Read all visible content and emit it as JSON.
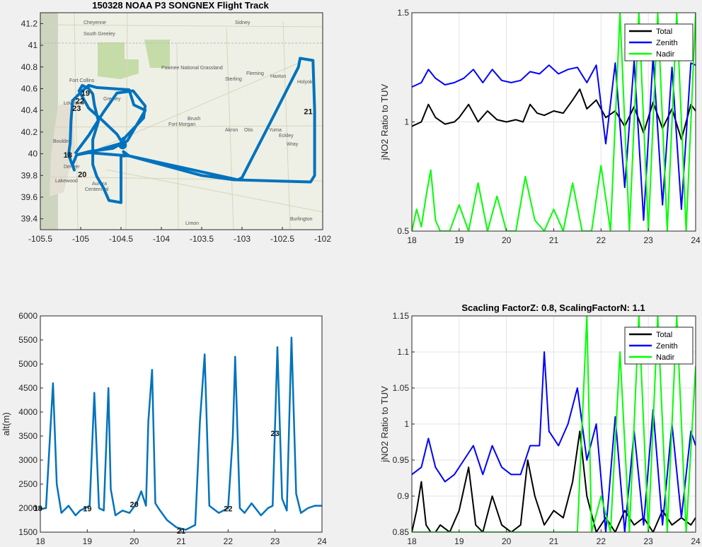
{
  "colors": {
    "track": "#0072bd",
    "total": "#000000",
    "zenith": "#0000ff",
    "nadir": "#00ff00"
  },
  "chart_data": [
    {
      "type": "line",
      "title": "150328 NOAA P3 SONGNEX Flight Track",
      "xlim": [
        -105.5,
        -102
      ],
      "ylim": [
        39.3,
        41.3
      ],
      "xticks": [
        "-105.5",
        "-105",
        "-104.5",
        "-104",
        "-103.5",
        "-103",
        "-102.5",
        "-102"
      ],
      "yticks": [
        "39.4",
        "39.6",
        "39.8",
        "40",
        "40.2",
        "40.4",
        "40.6",
        "40.8",
        "41",
        "41.2"
      ],
      "basemap": "road map of northeastern Colorado",
      "map_labels": [
        "Cheyenne",
        "South Greeley",
        "Sidney",
        "Fort Collins",
        "Greeley",
        "Loveland",
        "Pawnee National Grassland",
        "Sterling",
        "Fleming",
        "Haxtun",
        "Holyoke",
        "Boulder",
        "Denver",
        "Lakewood",
        "Aurora",
        "Centennial",
        "Brush",
        "Fort Morgan",
        "Akron",
        "Otis",
        "Yuma",
        "Eckley",
        "Wray",
        "Limon",
        "Burlington"
      ],
      "hour_labels": [
        {
          "text": "19",
          "x": -104.94,
          "y": 40.56
        },
        {
          "text": "22",
          "x": -105.01,
          "y": 40.49
        },
        {
          "text": "23",
          "x": -105.05,
          "y": 40.42
        },
        {
          "text": "21",
          "x": -102.18,
          "y": 40.39
        },
        {
          "text": "18",
          "x": -105.16,
          "y": 39.99
        },
        {
          "text": "20",
          "x": -104.98,
          "y": 39.81
        }
      ],
      "track": [
        [
          -105.07,
          40.0
        ],
        [
          -104.9,
          40.17
        ],
        [
          -104.72,
          40.38
        ],
        [
          -104.55,
          40.56
        ],
        [
          -104.35,
          40.58
        ],
        [
          -104.2,
          40.44
        ],
        [
          -104.22,
          40.33
        ],
        [
          -104.45,
          40.15
        ],
        [
          -104.5,
          40.08
        ],
        [
          -104.42,
          40.12
        ],
        [
          -104.2,
          40.4
        ],
        [
          -104.34,
          40.45
        ],
        [
          -104.4,
          40.59
        ],
        [
          -104.8,
          40.61
        ],
        [
          -104.9,
          40.63
        ],
        [
          -104.98,
          40.58
        ],
        [
          -105.1,
          40.49
        ],
        [
          -105.12,
          40.3
        ],
        [
          -105.13,
          40.1
        ],
        [
          -105.15,
          39.99
        ],
        [
          -105.08,
          39.85
        ],
        [
          -105.1,
          39.9
        ],
        [
          -105.05,
          39.99
        ],
        [
          -104.9,
          40.02
        ],
        [
          -104.6,
          40.05
        ],
        [
          -104.48,
          40.1
        ],
        [
          -104.85,
          40.02
        ],
        [
          -105.05,
          39.99
        ],
        [
          -104.9,
          40.01
        ],
        [
          -104.4,
          39.98
        ],
        [
          -103.05,
          39.76
        ],
        [
          -103.0,
          39.78
        ],
        [
          -102.6,
          40.36
        ],
        [
          -102.3,
          40.8
        ],
        [
          -102.28,
          40.88
        ],
        [
          -102.12,
          40.86
        ],
        [
          -102.1,
          40.4
        ],
        [
          -102.1,
          39.8
        ],
        [
          -102.15,
          39.74
        ],
        [
          -103.1,
          39.76
        ],
        [
          -103.5,
          39.8
        ],
        [
          -104.4,
          39.98
        ],
        [
          -104.47,
          40.02
        ],
        [
          -104.45,
          39.98
        ],
        [
          -104.5,
          39.98
        ],
        [
          -104.5,
          39.55
        ],
        [
          -104.65,
          39.57
        ],
        [
          -104.72,
          39.69
        ],
        [
          -104.8,
          39.79
        ],
        [
          -104.85,
          39.9
        ],
        [
          -104.85,
          40.13
        ],
        [
          -104.78,
          40.3
        ],
        [
          -104.83,
          40.45
        ],
        [
          -104.85,
          40.55
        ],
        [
          -104.9,
          40.6
        ],
        [
          -104.98,
          40.63
        ],
        [
          -105.02,
          40.58
        ],
        [
          -104.9,
          40.42
        ],
        [
          -104.72,
          40.3
        ],
        [
          -104.55,
          40.18
        ],
        [
          -104.5,
          40.12
        ],
        [
          -104.46,
          40.15
        ]
      ]
    },
    {
      "type": "line",
      "title": "",
      "xlabel": "",
      "ylabel": "jNO2 Ratio to TUV",
      "xlim": [
        18,
        24
      ],
      "ylim": [
        0.5,
        1.5
      ],
      "xticks": [
        "18",
        "19",
        "20",
        "21",
        "22",
        "23",
        "24"
      ],
      "yticks": [
        "0.5",
        "1",
        "1.5"
      ],
      "grid": true,
      "legend": "top-right",
      "series": [
        {
          "name": "Total",
          "x": [
            18.0,
            18.2,
            18.35,
            18.5,
            18.7,
            18.9,
            19.0,
            19.2,
            19.4,
            19.6,
            19.8,
            20.0,
            20.2,
            20.35,
            20.5,
            20.65,
            20.8,
            21.0,
            21.2,
            21.4,
            21.55,
            21.7,
            21.9,
            22.1,
            22.3,
            22.5,
            22.7,
            22.9,
            23.1,
            23.3,
            23.5,
            23.7,
            23.9,
            24.0
          ],
          "y": [
            0.98,
            1.0,
            1.08,
            1.02,
            0.99,
            1.0,
            1.02,
            1.08,
            1.0,
            1.05,
            1.01,
            1.0,
            1.01,
            1.0,
            1.08,
            1.04,
            1.03,
            1.05,
            1.04,
            1.1,
            1.15,
            1.06,
            1.1,
            1.02,
            1.05,
            0.98,
            1.07,
            0.95,
            1.09,
            0.97,
            1.06,
            0.92,
            1.08,
            1.05
          ]
        },
        {
          "name": "Zenith",
          "x": [
            18.0,
            18.2,
            18.35,
            18.5,
            18.7,
            18.9,
            19.1,
            19.3,
            19.5,
            19.7,
            19.9,
            20.1,
            20.3,
            20.5,
            20.7,
            20.9,
            21.1,
            21.3,
            21.5,
            21.7,
            21.9,
            22.1,
            22.3,
            22.5,
            22.7,
            22.9,
            23.1,
            23.3,
            23.5,
            23.7,
            23.9,
            24.0
          ],
          "y": [
            1.16,
            1.18,
            1.24,
            1.2,
            1.17,
            1.18,
            1.2,
            1.24,
            1.18,
            1.24,
            1.19,
            1.18,
            1.19,
            1.23,
            1.22,
            1.26,
            1.22,
            1.24,
            1.25,
            1.18,
            1.26,
            0.9,
            1.27,
            0.7,
            1.28,
            0.55,
            1.3,
            0.62,
            1.25,
            0.6,
            1.27,
            1.26
          ]
        },
        {
          "name": "Nadir",
          "x": [
            18.0,
            18.1,
            18.2,
            18.3,
            18.4,
            18.5,
            18.6,
            18.8,
            19.0,
            19.2,
            19.4,
            19.6,
            19.8,
            20.0,
            20.2,
            20.4,
            20.6,
            20.8,
            21.0,
            21.2,
            21.4,
            21.6,
            21.8,
            22.0,
            22.2,
            22.4,
            22.6,
            22.8,
            23.0,
            23.2,
            23.4,
            23.6,
            23.8,
            24.0
          ],
          "y": [
            0.5,
            0.6,
            0.52,
            0.66,
            0.78,
            0.55,
            0.5,
            0.5,
            0.62,
            0.5,
            0.72,
            0.5,
            0.66,
            0.5,
            0.5,
            0.75,
            0.55,
            0.5,
            0.6,
            0.5,
            0.72,
            0.5,
            0.5,
            0.8,
            0.5,
            1.5,
            0.5,
            1.5,
            0.5,
            1.5,
            0.5,
            1.5,
            0.5,
            1.5
          ]
        }
      ]
    },
    {
      "type": "line",
      "title": "",
      "xlabel": "",
      "ylabel": "alt(m)",
      "xlim": [
        18,
        24
      ],
      "ylim": [
        1500,
        6000
      ],
      "xticks": [
        "18",
        "19",
        "20",
        "21",
        "22",
        "23",
        "24"
      ],
      "yticks": [
        "1500",
        "2000",
        "2500",
        "3000",
        "3500",
        "4000",
        "4500",
        "5000",
        "5500",
        "6000"
      ],
      "series": [
        {
          "name": "",
          "x": [
            18.0,
            18.12,
            18.2,
            18.27,
            18.35,
            18.45,
            18.6,
            18.75,
            18.85,
            18.95,
            19.05,
            19.15,
            19.25,
            19.35,
            19.45,
            19.5,
            19.6,
            19.75,
            19.9,
            20.05,
            20.15,
            20.25,
            20.3,
            20.38,
            20.45,
            20.55,
            20.7,
            20.9,
            21.1,
            21.3,
            21.4,
            21.5,
            21.6,
            21.8,
            22.0,
            22.1,
            22.15,
            22.25,
            22.35,
            22.5,
            22.7,
            22.85,
            22.95,
            23.05,
            23.15,
            23.25,
            23.35,
            23.45,
            23.55,
            23.7,
            23.85,
            24.0
          ],
          "y": [
            1980,
            2000,
            3400,
            4600,
            2500,
            1900,
            2050,
            1850,
            1950,
            2000,
            2050,
            4400,
            2000,
            1950,
            4500,
            2400,
            1850,
            1950,
            1900,
            2100,
            2350,
            2050,
            3800,
            4880,
            2100,
            1950,
            1750,
            1600,
            1550,
            1650,
            3800,
            5200,
            2050,
            1900,
            2000,
            3500,
            5150,
            2000,
            1900,
            2100,
            1850,
            2000,
            2050,
            5350,
            2200,
            1950,
            5550,
            2300,
            1900,
            2000,
            2050,
            2050
          ]
        }
      ],
      "hour_labels": [
        {
          "text": "18",
          "x": 17.95,
          "y": 2000
        },
        {
          "text": "19",
          "x": 19.0,
          "y": 1990
        },
        {
          "text": "20",
          "x": 20.0,
          "y": 2080
        },
        {
          "text": "21",
          "x": 21.0,
          "y": 1530
        },
        {
          "text": "22",
          "x": 22.0,
          "y": 1990
        },
        {
          "text": "23",
          "x": 23.0,
          "y": 3560
        }
      ]
    },
    {
      "type": "line",
      "title": "Scacling FactorZ: 0.8, ScalingFactorN: 1.1",
      "xlabel": "",
      "ylabel": "jNO2 Ratio to TUV",
      "xlim": [
        18,
        24
      ],
      "ylim": [
        0.85,
        1.15
      ],
      "xticks": [
        "18",
        "19",
        "20",
        "21",
        "22",
        "23",
        "24"
      ],
      "yticks": [
        "0.85",
        "0.9",
        "0.95",
        "1",
        "1.05",
        "1.1",
        "1.15"
      ],
      "grid": true,
      "legend": "top-right",
      "series": [
        {
          "name": "Total",
          "x": [
            18.0,
            18.1,
            18.2,
            18.3,
            18.4,
            18.5,
            18.6,
            18.8,
            19.0,
            19.2,
            19.35,
            19.5,
            19.7,
            19.9,
            20.1,
            20.3,
            20.45,
            20.6,
            20.8,
            21.0,
            21.2,
            21.4,
            21.55,
            21.7,
            21.9,
            22.1,
            22.3,
            22.5,
            22.7,
            22.9,
            23.1,
            23.3,
            23.5,
            23.7,
            23.9,
            24.0
          ],
          "y": [
            0.85,
            0.88,
            0.92,
            0.86,
            0.85,
            0.85,
            0.86,
            0.85,
            0.88,
            0.94,
            0.86,
            0.85,
            0.9,
            0.86,
            0.85,
            0.86,
            0.95,
            0.9,
            0.86,
            0.88,
            0.87,
            0.92,
            0.99,
            0.9,
            0.85,
            0.87,
            0.85,
            0.88,
            0.86,
            0.87,
            0.85,
            0.88,
            0.86,
            0.87,
            0.86,
            0.87
          ]
        },
        {
          "name": "Zenith",
          "x": [
            18.0,
            18.2,
            18.35,
            18.5,
            18.7,
            18.9,
            19.1,
            19.3,
            19.5,
            19.7,
            19.9,
            20.1,
            20.3,
            20.5,
            20.7,
            20.8,
            20.9,
            21.1,
            21.3,
            21.5,
            21.7,
            21.9,
            22.1,
            22.3,
            22.5,
            22.7,
            22.9,
            23.1,
            23.3,
            23.5,
            23.7,
            23.9,
            24.0
          ],
          "y": [
            0.93,
            0.94,
            0.98,
            0.94,
            0.92,
            0.93,
            0.95,
            0.97,
            0.93,
            0.97,
            0.94,
            0.93,
            0.93,
            0.97,
            0.97,
            1.1,
            0.99,
            0.97,
            1.0,
            1.05,
            0.95,
            1.0,
            0.85,
            1.01,
            0.85,
            0.99,
            0.86,
            1.02,
            0.86,
            1.0,
            0.87,
            0.99,
            0.97
          ]
        },
        {
          "name": "Nadir",
          "x": [
            18.0,
            18.5,
            19.0,
            19.5,
            20.0,
            20.5,
            21.0,
            21.5,
            21.7,
            21.8,
            22.0,
            22.2,
            22.4,
            22.6,
            22.8,
            23.0,
            23.2,
            23.4,
            23.6,
            23.8,
            24.0
          ],
          "y": [
            0.85,
            0.85,
            0.85,
            0.85,
            0.85,
            0.85,
            0.85,
            0.85,
            1.15,
            0.85,
            0.9,
            0.85,
            1.1,
            0.85,
            1.15,
            0.85,
            1.15,
            0.85,
            1.15,
            0.85,
            1.08
          ]
        }
      ]
    }
  ]
}
